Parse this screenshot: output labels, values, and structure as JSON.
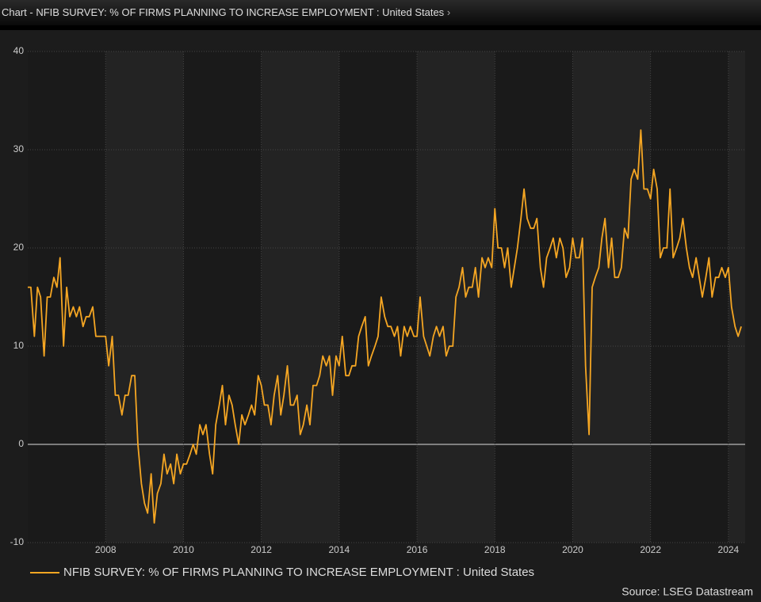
{
  "chart_data": {
    "type": "line",
    "title": "Chart - NFIB SURVEY: % OF FIRMS PLANNING TO INCREASE EMPLOYMENT : United States",
    "source": "Source: LSEG Datastream",
    "xlim": [
      2006,
      2024.43
    ],
    "xticks": [
      2008,
      2010,
      2012,
      2014,
      2016,
      2018,
      2020,
      2022,
      2024
    ],
    "ylim": [
      -10,
      40
    ],
    "yticks": [
      -10,
      0,
      10,
      20,
      30,
      40
    ],
    "grid": true,
    "x": [
      2006.0,
      2006.08,
      2006.17,
      2006.25,
      2006.33,
      2006.42,
      2006.5,
      2006.58,
      2006.67,
      2006.75,
      2006.83,
      2006.92,
      2007.0,
      2007.08,
      2007.17,
      2007.25,
      2007.33,
      2007.42,
      2007.5,
      2007.58,
      2007.67,
      2007.75,
      2007.83,
      2007.92,
      2008.0,
      2008.08,
      2008.17,
      2008.25,
      2008.33,
      2008.42,
      2008.5,
      2008.58,
      2008.67,
      2008.75,
      2008.83,
      2008.92,
      2009.0,
      2009.08,
      2009.17,
      2009.25,
      2009.33,
      2009.42,
      2009.5,
      2009.58,
      2009.67,
      2009.75,
      2009.83,
      2009.92,
      2010.0,
      2010.08,
      2010.17,
      2010.25,
      2010.33,
      2010.42,
      2010.5,
      2010.58,
      2010.67,
      2010.75,
      2010.83,
      2010.92,
      2011.0,
      2011.08,
      2011.17,
      2011.25,
      2011.33,
      2011.42,
      2011.5,
      2011.58,
      2011.67,
      2011.75,
      2011.83,
      2011.92,
      2012.0,
      2012.08,
      2012.17,
      2012.25,
      2012.33,
      2012.42,
      2012.5,
      2012.58,
      2012.67,
      2012.75,
      2012.83,
      2012.92,
      2013.0,
      2013.08,
      2013.17,
      2013.25,
      2013.33,
      2013.42,
      2013.5,
      2013.58,
      2013.67,
      2013.75,
      2013.83,
      2013.92,
      2014.0,
      2014.08,
      2014.17,
      2014.25,
      2014.33,
      2014.42,
      2014.5,
      2014.58,
      2014.67,
      2014.75,
      2014.83,
      2014.92,
      2015.0,
      2015.08,
      2015.17,
      2015.25,
      2015.33,
      2015.42,
      2015.5,
      2015.58,
      2015.67,
      2015.75,
      2015.83,
      2015.92,
      2016.0,
      2016.08,
      2016.17,
      2016.25,
      2016.33,
      2016.42,
      2016.5,
      2016.58,
      2016.67,
      2016.75,
      2016.83,
      2016.92,
      2017.0,
      2017.08,
      2017.17,
      2017.25,
      2017.33,
      2017.42,
      2017.5,
      2017.58,
      2017.67,
      2017.75,
      2017.83,
      2017.92,
      2018.0,
      2018.08,
      2018.17,
      2018.25,
      2018.33,
      2018.42,
      2018.5,
      2018.58,
      2018.67,
      2018.75,
      2018.83,
      2018.92,
      2019.0,
      2019.08,
      2019.17,
      2019.25,
      2019.33,
      2019.42,
      2019.5,
      2019.58,
      2019.67,
      2019.75,
      2019.83,
      2019.92,
      2020.0,
      2020.08,
      2020.17,
      2020.25,
      2020.33,
      2020.42,
      2020.5,
      2020.58,
      2020.67,
      2020.75,
      2020.83,
      2020.92,
      2021.0,
      2021.08,
      2021.17,
      2021.25,
      2021.33,
      2021.42,
      2021.5,
      2021.58,
      2021.67,
      2021.75,
      2021.83,
      2021.92,
      2022.0,
      2022.08,
      2022.17,
      2022.25,
      2022.33,
      2022.42,
      2022.5,
      2022.58,
      2022.67,
      2022.75,
      2022.83,
      2022.92,
      2023.0,
      2023.08,
      2023.17,
      2023.25,
      2023.33,
      2023.42,
      2023.5,
      2023.58,
      2023.67,
      2023.75,
      2023.83,
      2023.92,
      2024.0,
      2024.08,
      2024.17,
      2024.25,
      2024.33
    ],
    "series": [
      {
        "name": "NFIB SURVEY: % OF FIRMS PLANNING TO INCREASE EMPLOYMENT : United States",
        "color": "#f5a623",
        "values": [
          16,
          16,
          11,
          16,
          15,
          9,
          15,
          15,
          17,
          16,
          19,
          10,
          16,
          13,
          14,
          13,
          14,
          12,
          13,
          13,
          14,
          11,
          11,
          11,
          11,
          8,
          11,
          5,
          5,
          3,
          5,
          5,
          7,
          7,
          0,
          -4,
          -6,
          -7,
          -3,
          -8,
          -5,
          -4,
          -1,
          -3,
          -2,
          -4,
          -1,
          -3,
          -2,
          -2,
          -1,
          0,
          -1,
          2,
          1,
          2,
          -1,
          -3,
          2,
          4,
          6,
          2,
          5,
          4,
          2,
          0,
          3,
          2,
          3,
          4,
          3,
          7,
          6,
          4,
          4,
          2,
          5,
          7,
          3,
          5,
          8,
          4,
          4,
          5,
          1,
          2,
          4,
          2,
          6,
          6,
          7,
          9,
          8,
          9,
          5,
          9,
          8,
          11,
          7,
          7,
          8,
          8,
          11,
          12,
          13,
          8,
          9,
          10,
          11,
          15,
          13,
          12,
          12,
          11,
          12,
          9,
          12,
          11,
          12,
          11,
          11,
          15,
          11,
          10,
          9,
          11,
          12,
          11,
          12,
          9,
          10,
          10,
          15,
          16,
          18,
          15,
          16,
          16,
          18,
          15,
          19,
          18,
          19,
          18,
          24,
          20,
          20,
          18,
          20,
          16,
          18,
          20,
          23,
          26,
          23,
          22,
          22,
          23,
          18,
          16,
          19,
          20,
          21,
          19,
          21,
          20,
          17,
          18,
          21,
          19,
          19,
          21,
          8,
          1,
          16,
          17,
          18,
          21,
          23,
          18,
          21,
          17,
          17,
          18,
          22,
          21,
          27,
          28,
          27,
          32,
          26,
          26,
          25,
          28,
          26,
          19,
          20,
          20,
          26,
          19,
          20,
          21,
          23,
          20,
          18,
          17,
          19,
          17,
          15,
          17,
          19,
          15,
          17,
          17,
          18,
          17,
          18,
          14,
          12,
          11,
          12
        ]
      }
    ]
  }
}
